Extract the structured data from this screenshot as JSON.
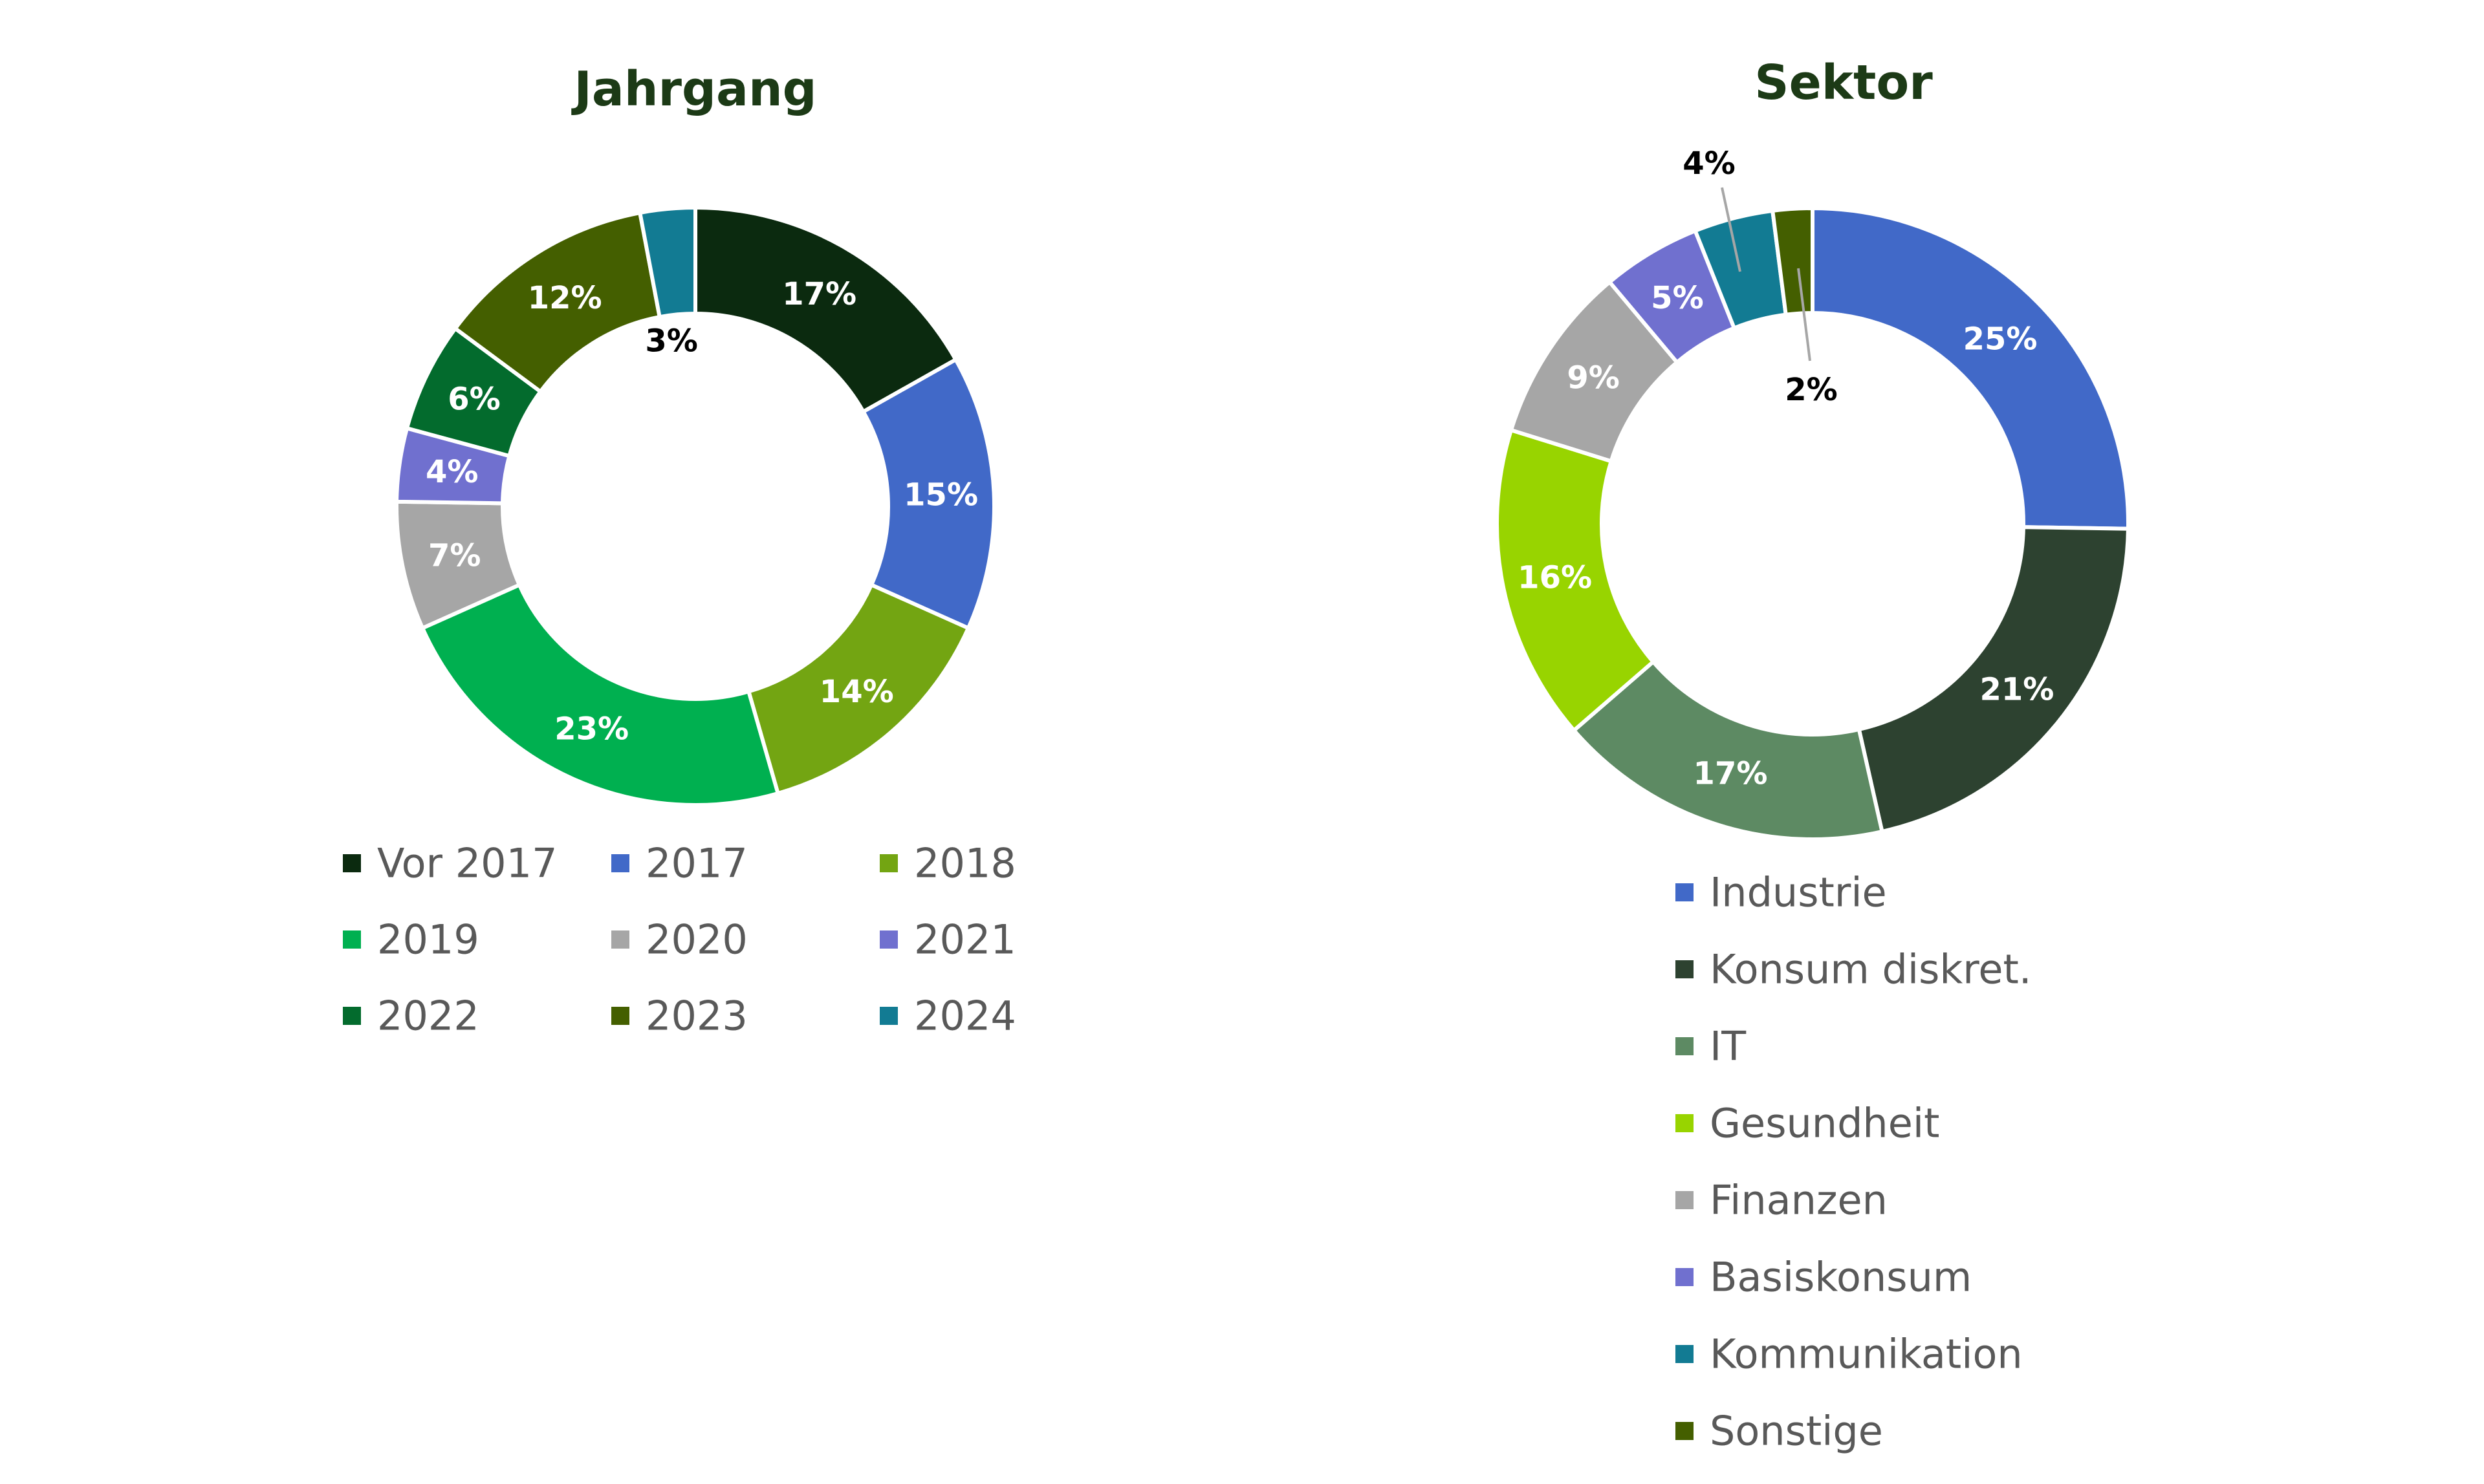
{
  "chart_data": [
    {
      "type": "pie",
      "title": "Jahrgang",
      "categories": [
        "Vor 2017",
        "2017",
        "2018",
        "2019",
        "2020",
        "2021",
        "2022",
        "2023",
        "2024"
      ],
      "values": [
        17,
        15,
        14,
        23,
        7,
        4,
        6,
        12,
        3
      ],
      "labels": [
        "17%",
        "15%",
        "14%",
        "23%",
        "7%",
        "4%",
        "6%",
        "12%",
        "3%"
      ],
      "colors": [
        "#0b2a0f",
        "#4169c8",
        "#73a512",
        "#00b050",
        "#a6a6a6",
        "#7070cf",
        "#036b2d",
        "#445f00",
        "#127b93"
      ],
      "legend_position": "bottom",
      "donut": true
    },
    {
      "type": "pie",
      "title": "Sektor",
      "categories": [
        "Industrie",
        "Konsum diskret.",
        "IT",
        "Gesundheit",
        "Finanzen",
        "Basiskonsum",
        "Kommunikation",
        "Sonstige"
      ],
      "values": [
        25,
        21,
        17,
        16,
        9,
        5,
        4,
        2
      ],
      "labels": [
        "25%",
        "21%",
        "17%",
        "16%",
        "9%",
        "5%",
        "4%",
        "2%"
      ],
      "colors": [
        "#4169c8",
        "#2d4230",
        "#5d8a63",
        "#98d400",
        "#a6a6a6",
        "#7070cf",
        "#127b93",
        "#445f00"
      ],
      "legend_position": "bottom",
      "donut": true
    }
  ]
}
